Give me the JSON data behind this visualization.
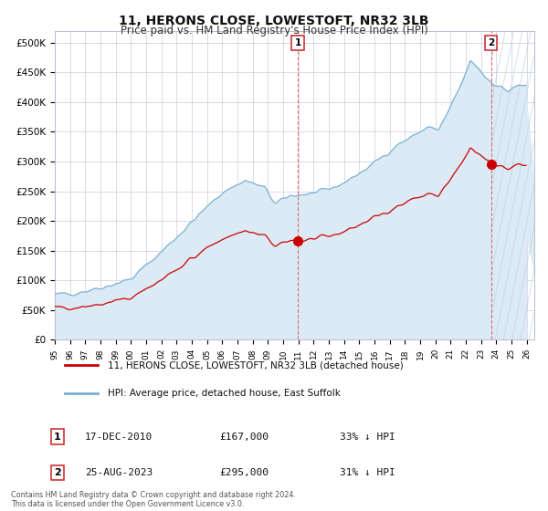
{
  "title": "11, HERONS CLOSE, LOWESTOFT, NR32 3LB",
  "subtitle": "Price paid vs. HM Land Registry's House Price Index (HPI)",
  "title_fontsize": 10,
  "subtitle_fontsize": 8.5,
  "ylabel_ticks": [
    "£0",
    "£50K",
    "£100K",
    "£150K",
    "£200K",
    "£250K",
    "£300K",
    "£350K",
    "£400K",
    "£450K",
    "£500K"
  ],
  "ytick_vals": [
    0,
    50000,
    100000,
    150000,
    200000,
    250000,
    300000,
    350000,
    400000,
    450000,
    500000
  ],
  "ylim": [
    0,
    520000
  ],
  "xlim_start": 1995.0,
  "xlim_end": 2026.5,
  "line_red_color": "#cc0000",
  "line_blue_color": "#7ab0d4",
  "fill_blue_color": "#dbeaf5",
  "grid_color": "#ccccdd",
  "bg_color": "#ffffff",
  "sale1_x": 2010.96,
  "sale1_y": 167000,
  "sale1_label": "1",
  "sale2_x": 2023.65,
  "sale2_y": 295000,
  "sale2_label": "2",
  "legend_red": "11, HERONS CLOSE, LOWESTOFT, NR32 3LB (detached house)",
  "legend_blue": "HPI: Average price, detached house, East Suffolk",
  "annotation1_date": "17-DEC-2010",
  "annotation1_price": "£167,000",
  "annotation1_hpi": "33% ↓ HPI",
  "annotation2_date": "25-AUG-2023",
  "annotation2_price": "£295,000",
  "annotation2_hpi": "31% ↓ HPI",
  "footer": "Contains HM Land Registry data © Crown copyright and database right 2024.\nThis data is licensed under the Open Government Licence v3.0."
}
